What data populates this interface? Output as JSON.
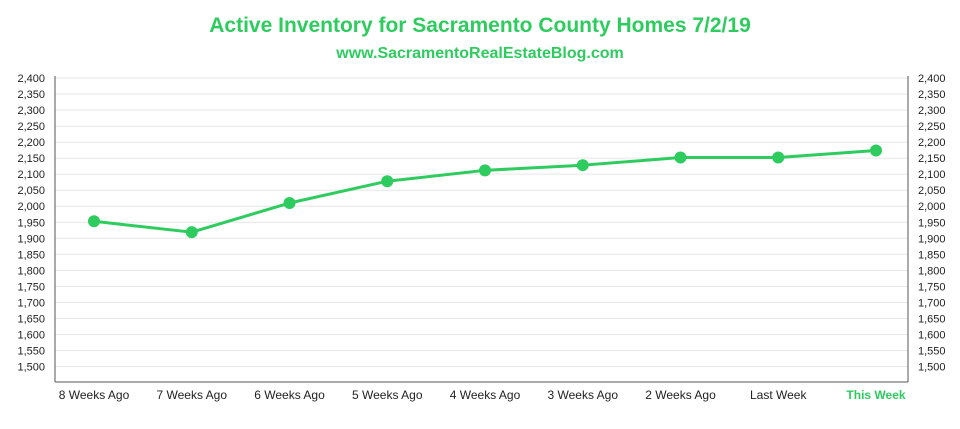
{
  "chart_data": {
    "type": "line",
    "title": "Active Inventory for Sacramento County Homes 7/2/19",
    "subtitle": "www.SacramentoRealEstateBlog.com",
    "categories": [
      "8 Weeks Ago",
      "7 Weeks Ago",
      "6 Weeks Ago",
      "5 Weeks Ago",
      "4 Weeks Ago",
      "3 Weeks Ago",
      "2 Weeks Ago",
      "Last Week",
      "This Week"
    ],
    "highlighted_category": "This Week",
    "series": [
      {
        "values": [
          1953,
          1919,
          2010,
          2078,
          2112,
          2128,
          2152,
          2152,
          2174
        ]
      }
    ],
    "ylim": [
      1500,
      2400
    ],
    "yticks": [
      "1,500",
      "1,550",
      "1,600",
      "1,650",
      "1,700",
      "1,750",
      "1,800",
      "1,850",
      "1,900",
      "1,950",
      "2,000",
      "2,050",
      "2,100",
      "2,150",
      "2,200",
      "2,250",
      "2,300",
      "2,350",
      "2,400"
    ],
    "y_axis_both_sides": true,
    "grid": true,
    "colors": {
      "line": "#2ecc5f",
      "grid": "#e6e6e6",
      "axis": "#555555",
      "title": "#2ecc5f"
    }
  }
}
